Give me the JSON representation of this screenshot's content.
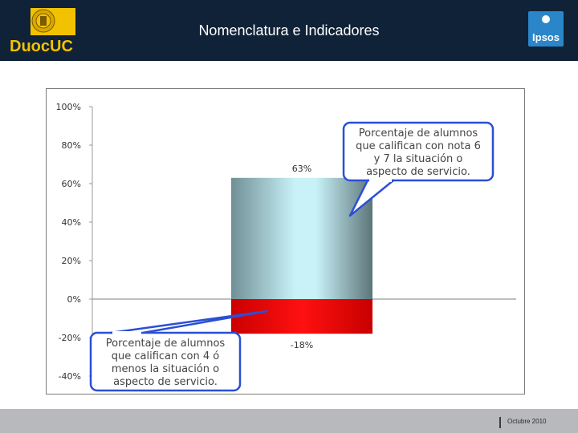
{
  "header": {
    "title": "Nomenclatura e Indicadores",
    "logo_left_text": "DuocUC",
    "logo_right_text": "Ipsos",
    "bg_color": "#0f2238"
  },
  "footer": {
    "date": "Octubre 2010"
  },
  "chart_data": {
    "type": "bar",
    "categories": [
      ""
    ],
    "series": [
      {
        "values": [
          63
        ],
        "color": "#a9d6e0"
      },
      {
        "values": [
          -18
        ],
        "color": "#e00000"
      }
    ],
    "data_labels": [
      "63%",
      "-18%"
    ],
    "ylim": [
      -40,
      100
    ],
    "yticks": [
      "100%",
      "80%",
      "60%",
      "40%",
      "20%",
      "0%",
      "-20%",
      "-40%"
    ],
    "grid": false,
    "annotations": [
      {
        "lines": [
          "Porcentaje de alumnos",
          "que califican con nota 6",
          "y 7 la situación o",
          "aspecto de servicio."
        ]
      },
      {
        "lines": [
          "Porcentaje de alumnos",
          "que califican con 4 ó",
          "menos la situación o",
          "aspecto de servicio."
        ]
      }
    ]
  }
}
